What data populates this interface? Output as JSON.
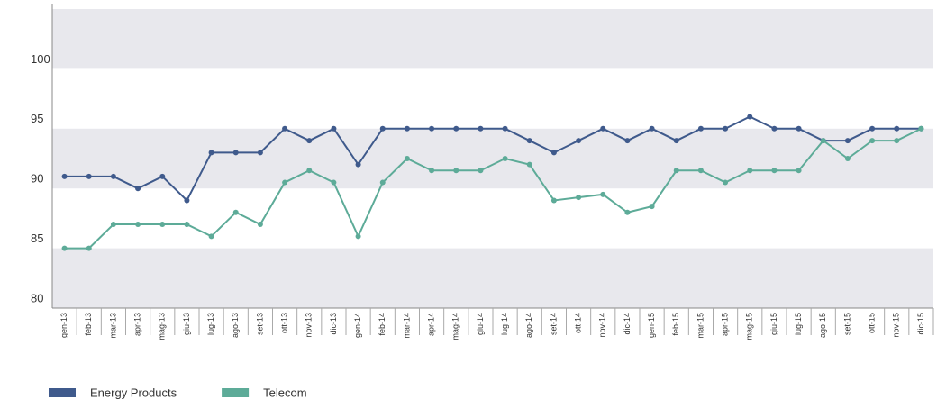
{
  "chart_data": {
    "type": "line",
    "categories": [
      "gen-13",
      "feb-13",
      "mar-13",
      "apr-13",
      "mag-13",
      "giu-13",
      "lug-13",
      "ago-13",
      "set-13",
      "ott-13",
      "nov-13",
      "dic-13",
      "gen-14",
      "feb-14",
      "mar-14",
      "apr-14",
      "mag-14",
      "giu-14",
      "lug-14",
      "ago-14",
      "set-14",
      "ott-14",
      "nov-14",
      "dic-14",
      "gen-15",
      "feb-15",
      "mar-15",
      "apr-15",
      "mag-15",
      "giu-15",
      "lug-15",
      "ago-15",
      "set-15",
      "ott-15",
      "nov-15",
      "dic-15"
    ],
    "series": [
      {
        "name": "Energy Products",
        "color": "#3f5a8c",
        "values": [
          91,
          91,
          91,
          90,
          91,
          89,
          93,
          93,
          93,
          95,
          94,
          95,
          92,
          95,
          95,
          95,
          95,
          95,
          95,
          94,
          93,
          94,
          95,
          94,
          95,
          94,
          95,
          95,
          96,
          95,
          95,
          94,
          94,
          95,
          95,
          95
        ]
      },
      {
        "name": "Telecom",
        "color": "#5dab98",
        "values": [
          85,
          85,
          87,
          87,
          87,
          87,
          86,
          88,
          87,
          90.5,
          91.5,
          90.5,
          86,
          90.5,
          92.5,
          91.5,
          91.5,
          91.5,
          92.5,
          92,
          89,
          89.25,
          89.5,
          88,
          88.5,
          91.5,
          91.5,
          90.5,
          91.5,
          91.5,
          91.5,
          94,
          92.5,
          94,
          94,
          95
        ]
      }
    ],
    "ylim": [
      80,
      105
    ],
    "yticks": [
      80,
      85,
      90,
      95,
      100
    ],
    "grid": true,
    "legend": "bottom-left"
  }
}
